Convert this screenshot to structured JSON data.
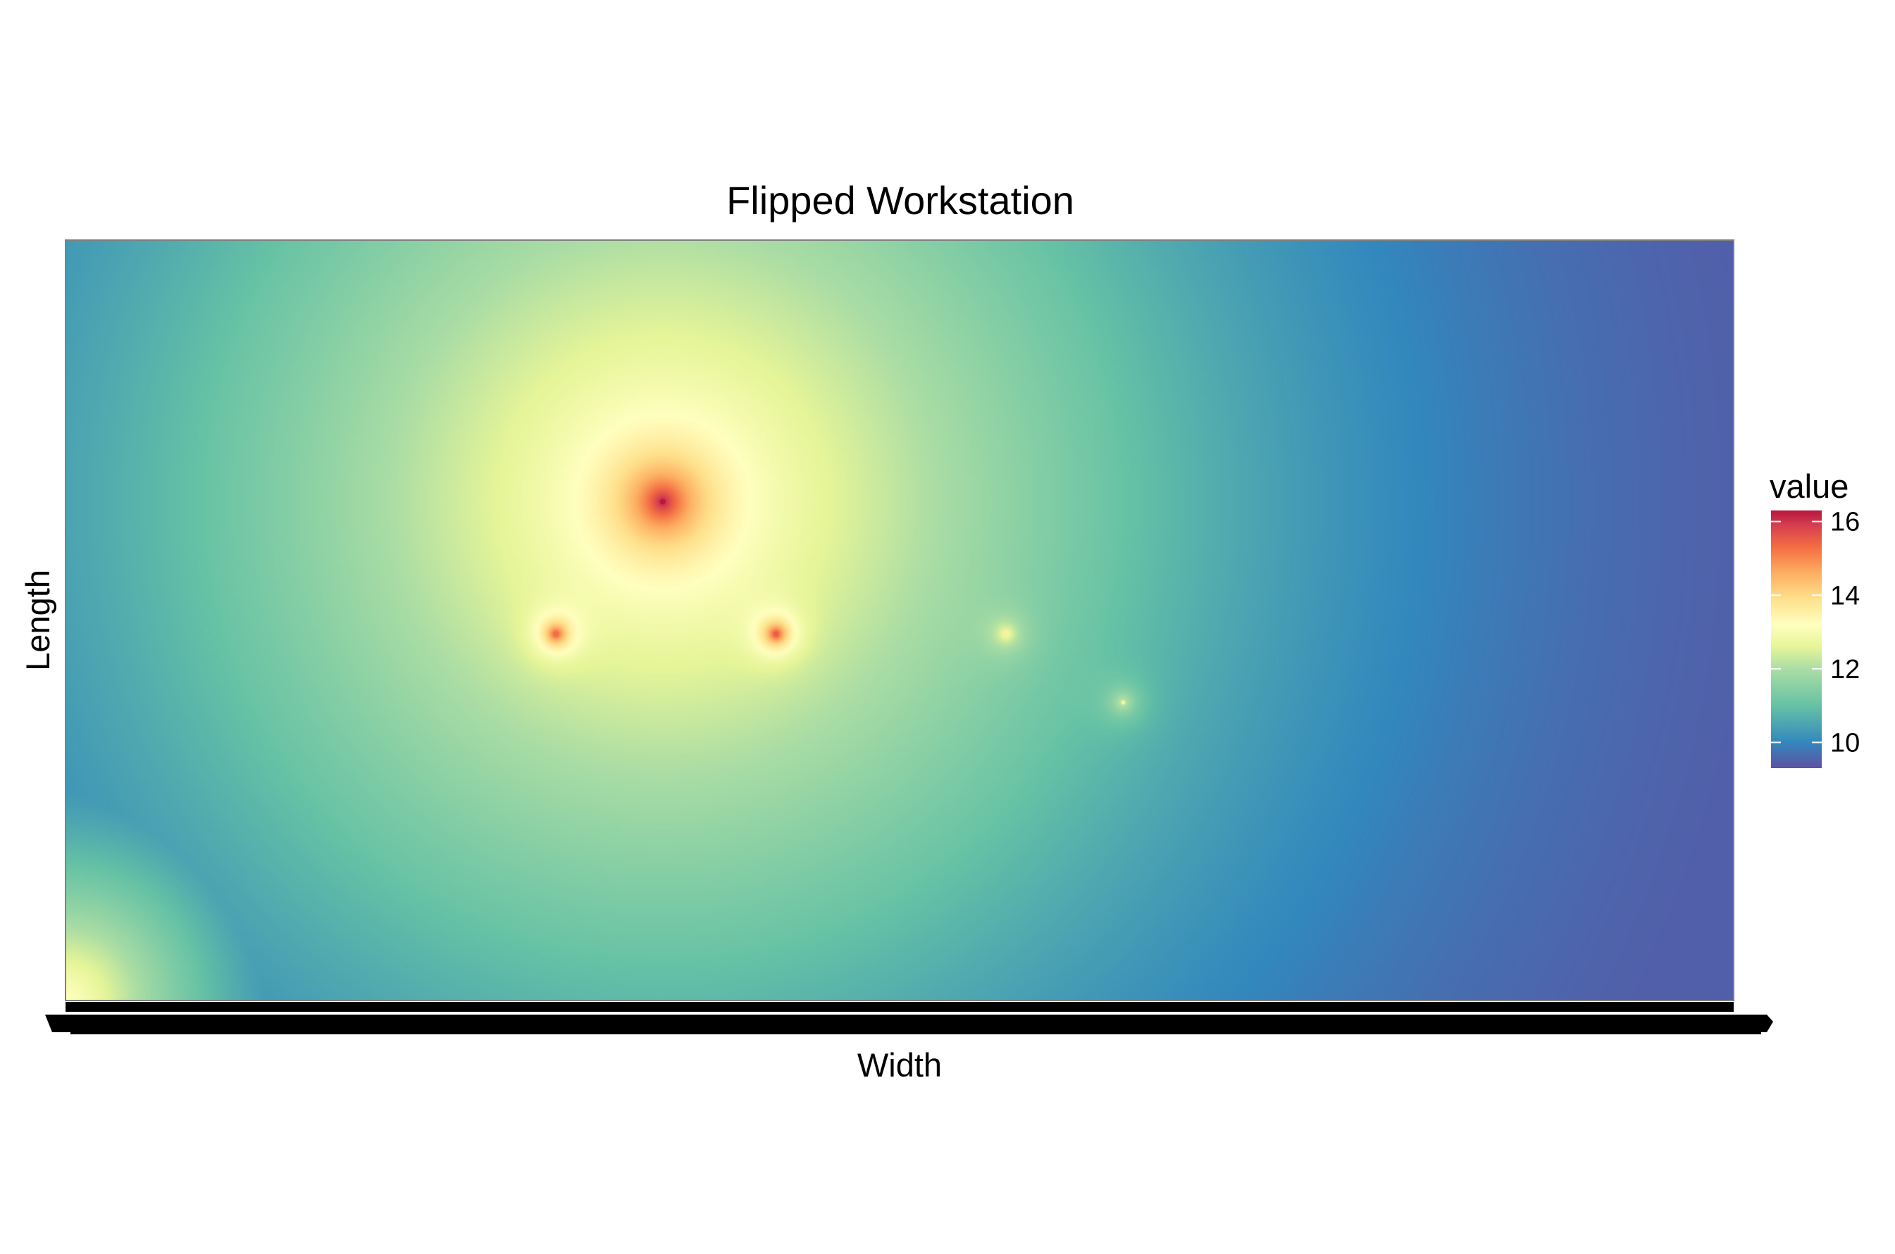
{
  "chart_data": {
    "type": "heatmap",
    "title": "Flipped Workstation",
    "xlabel": "Width",
    "ylabel": "Length",
    "x_tick_labels_legible": false,
    "y_tick_labels_shown": false,
    "legend": {
      "title": "value",
      "position": "right",
      "ticks": [
        10,
        12,
        14,
        16
      ],
      "range": [
        9.3,
        16.3
      ]
    },
    "color_scale": {
      "name": "Spectral",
      "stops": [
        {
          "value": 9.3,
          "color": "#5e4fa2"
        },
        {
          "value": 10.0,
          "color": "#3288bd"
        },
        {
          "value": 11.0,
          "color": "#66c2a5"
        },
        {
          "value": 12.0,
          "color": "#abdda4"
        },
        {
          "value": 12.6,
          "color": "#e6f598"
        },
        {
          "value": 13.2,
          "color": "#ffffbf"
        },
        {
          "value": 13.9,
          "color": "#fee08b"
        },
        {
          "value": 14.6,
          "color": "#fdae61"
        },
        {
          "value": 15.3,
          "color": "#f46d43"
        },
        {
          "value": 15.9,
          "color": "#d53e4f"
        },
        {
          "value": 16.3,
          "color": "#b8173f"
        }
      ]
    },
    "x_range": [
      0,
      1
    ],
    "y_range": [
      0,
      1
    ],
    "hotspots": [
      {
        "x": 0.358,
        "y": 0.656,
        "peak": 16.3
      },
      {
        "x": 0.294,
        "y": 0.482,
        "peak": 15.3
      },
      {
        "x": 0.426,
        "y": 0.482,
        "peak": 15.5
      },
      {
        "x": 0.564,
        "y": 0.482,
        "peak": 13.6
      },
      {
        "x": 0.634,
        "y": 0.392,
        "peak": 13.6
      },
      {
        "x": 0.0,
        "y": 0.0,
        "peak": 13.2
      }
    ],
    "grid": false
  }
}
